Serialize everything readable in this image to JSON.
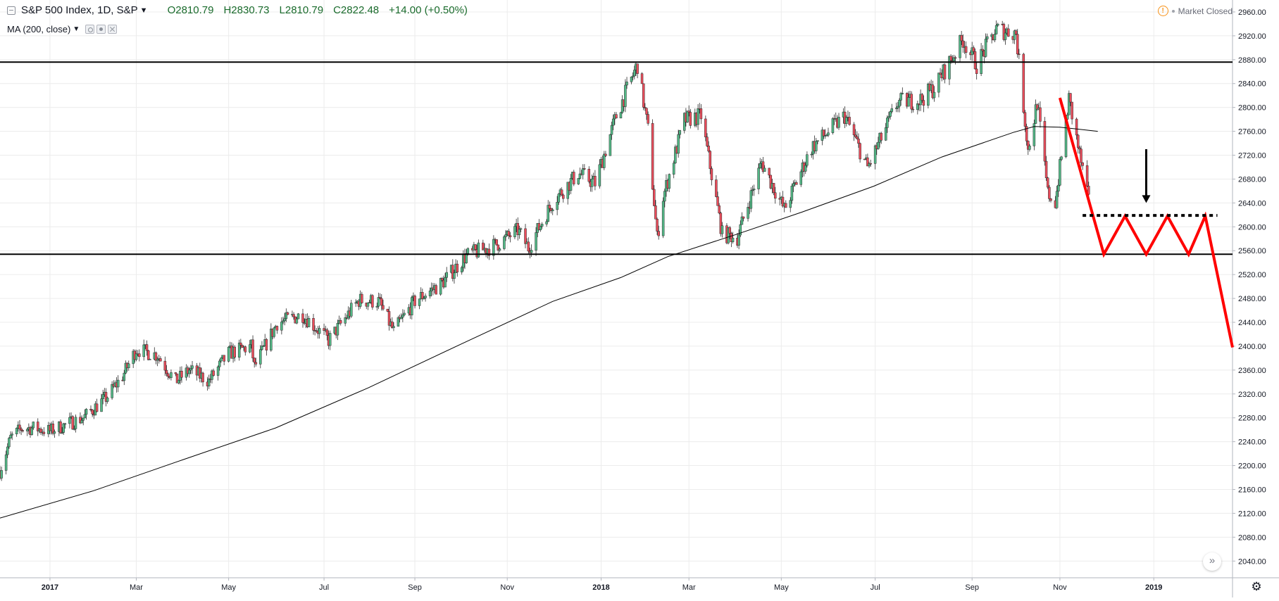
{
  "header": {
    "symbol": "S&P 500 Index, 1D, S&P",
    "open": "O2810.79",
    "high": "H2830.73",
    "low": "L2810.79",
    "close": "C2822.48",
    "change": "+14.00 (+0.50%)",
    "indicator": "MA (200, close)",
    "market_status": "Market Closed"
  },
  "colors": {
    "up": "#53b987",
    "down": "#eb4d5c",
    "ohlc_text": "#1a6b2c",
    "ma_line": "#000000",
    "projection": "#ff0000",
    "grid": "#ececec",
    "axis_text": "#131722"
  },
  "icons": [
    "collapse-icon",
    "chevron-down-icon",
    "eye-icon",
    "gear-icon",
    "close-icon",
    "warning-icon",
    "scroll-right-icon",
    "settings-icon"
  ],
  "chart_data": {
    "type": "candlestick",
    "price_axis": {
      "ticks": [
        "2960.00",
        "2920.00",
        "2880.00",
        "2840.00",
        "2800.00",
        "2760.00",
        "2720.00",
        "2680.00",
        "2640.00",
        "2600.00",
        "2560.00",
        "2520.00",
        "2480.00",
        "2440.00",
        "2400.00",
        "2360.00",
        "2320.00",
        "2280.00",
        "2240.00",
        "2200.00",
        "2160.00",
        "2120.00",
        "2080.00",
        "2040.00"
      ],
      "ylim": [
        2012,
        2980
      ]
    },
    "time_axis": {
      "ticks": [
        {
          "label": "2017",
          "date": "2017-01-03",
          "bold": true
        },
        {
          "label": "Mar",
          "date": "2017-03-01",
          "bold": false
        },
        {
          "label": "May",
          "date": "2017-05-01",
          "bold": false
        },
        {
          "label": "Jul",
          "date": "2017-07-03",
          "bold": false
        },
        {
          "label": "Sep",
          "date": "2017-09-01",
          "bold": false
        },
        {
          "label": "Nov",
          "date": "2017-11-01",
          "bold": false
        },
        {
          "label": "2018",
          "date": "2018-01-02",
          "bold": true
        },
        {
          "label": "Mar",
          "date": "2018-03-01",
          "bold": false
        },
        {
          "label": "May",
          "date": "2018-05-01",
          "bold": false
        },
        {
          "label": "Jul",
          "date": "2018-07-02",
          "bold": false
        },
        {
          "label": "Sep",
          "date": "2018-09-04",
          "bold": false
        },
        {
          "label": "Nov",
          "date": "2018-11-01",
          "bold": false
        },
        {
          "label": "2019",
          "date": "2019-01-02",
          "bold": true
        }
      ],
      "xlim": [
        "2016-12-01",
        "2019-02-23"
      ]
    },
    "price_path": [
      [
        "2016-12-01",
        2191
      ],
      [
        "2016-12-08",
        2246
      ],
      [
        "2016-12-15",
        2262
      ],
      [
        "2016-12-23",
        2263
      ],
      [
        "2017-01-03",
        2258
      ],
      [
        "2017-01-25",
        2280
      ],
      [
        "2017-02-10",
        2316
      ],
      [
        "2017-02-20",
        2350
      ],
      [
        "2017-03-01",
        2395
      ],
      [
        "2017-03-15",
        2385
      ],
      [
        "2017-03-27",
        2341
      ],
      [
        "2017-04-05",
        2360
      ],
      [
        "2017-04-18",
        2342
      ],
      [
        "2017-05-01",
        2388
      ],
      [
        "2017-05-16",
        2400
      ],
      [
        "2017-05-18",
        2365
      ],
      [
        "2017-06-02",
        2439
      ],
      [
        "2017-06-19",
        2453
      ],
      [
        "2017-07-06",
        2410
      ],
      [
        "2017-07-26",
        2477
      ],
      [
        "2017-08-08",
        2475
      ],
      [
        "2017-08-18",
        2425
      ],
      [
        "2017-09-01",
        2476
      ],
      [
        "2017-09-19",
        2506
      ],
      [
        "2017-10-05",
        2552
      ],
      [
        "2017-10-24",
        2569
      ],
      [
        "2017-11-08",
        2594
      ],
      [
        "2017-11-15",
        2565
      ],
      [
        "2017-12-01",
        2642
      ],
      [
        "2017-12-18",
        2690
      ],
      [
        "2017-12-29",
        2673
      ],
      [
        "2018-01-12",
        2786
      ],
      [
        "2018-01-26",
        2872
      ],
      [
        "2018-02-02",
        2762
      ],
      [
        "2018-02-08",
        2581
      ],
      [
        "2018-02-12",
        2650
      ],
      [
        "2018-02-26",
        2779
      ],
      [
        "2018-03-09",
        2786
      ],
      [
        "2018-03-23",
        2588
      ],
      [
        "2018-04-02",
        2582
      ],
      [
        "2018-04-18",
        2708
      ],
      [
        "2018-05-03",
        2629
      ],
      [
        "2018-05-21",
        2733
      ],
      [
        "2018-06-12",
        2786
      ],
      [
        "2018-06-27",
        2699
      ],
      [
        "2018-07-17",
        2809
      ],
      [
        "2018-08-01",
        2813
      ],
      [
        "2018-08-10",
        2833
      ],
      [
        "2018-08-29",
        2914
      ],
      [
        "2018-09-07",
        2872
      ],
      [
        "2018-09-20",
        2931
      ],
      [
        "2018-10-03",
        2925
      ],
      [
        "2018-10-11",
        2728
      ],
      [
        "2018-10-17",
        2809
      ],
      [
        "2018-10-24",
        2656
      ],
      [
        "2018-10-29",
        2641
      ],
      [
        "2018-11-07",
        2814
      ],
      [
        "2018-11-20",
        2641
      ]
    ],
    "moving_average": {
      "label": "MA (200, close)",
      "points": [
        [
          "2016-12-01",
          2112
        ],
        [
          "2017-02-01",
          2158
        ],
        [
          "2017-04-01",
          2210
        ],
        [
          "2017-06-01",
          2263
        ],
        [
          "2017-08-01",
          2330
        ],
        [
          "2017-10-01",
          2403
        ],
        [
          "2017-12-01",
          2475
        ],
        [
          "2018-01-15",
          2515
        ],
        [
          "2018-02-15",
          2550
        ],
        [
          "2018-04-01",
          2587
        ],
        [
          "2018-05-15",
          2625
        ],
        [
          "2018-07-01",
          2668
        ],
        [
          "2018-08-15",
          2717
        ],
        [
          "2018-10-01",
          2758
        ],
        [
          "2018-10-15",
          2768
        ],
        [
          "2018-11-01",
          2767
        ],
        [
          "2018-11-26",
          2760
        ]
      ]
    },
    "horizontal_levels": [
      {
        "name": "resistance-line",
        "price": 2876
      },
      {
        "name": "support-line",
        "price": 2554
      }
    ],
    "projection": {
      "points": [
        [
          "2018-11-01",
          2816
        ],
        [
          "2018-11-30",
          2554
        ],
        [
          "2018-12-14",
          2618
        ],
        [
          "2018-12-28",
          2554
        ],
        [
          "2019-01-11",
          2618
        ],
        [
          "2019-01-25",
          2554
        ],
        [
          "2019-02-05",
          2618
        ],
        [
          "2019-02-23",
          2398
        ]
      ],
      "dotted_level": {
        "price": 2619,
        "from": "2018-11-16",
        "to": "2019-02-13"
      },
      "arrow": {
        "date": "2018-12-28",
        "from_price": 2730,
        "to_price": 2640
      }
    }
  }
}
